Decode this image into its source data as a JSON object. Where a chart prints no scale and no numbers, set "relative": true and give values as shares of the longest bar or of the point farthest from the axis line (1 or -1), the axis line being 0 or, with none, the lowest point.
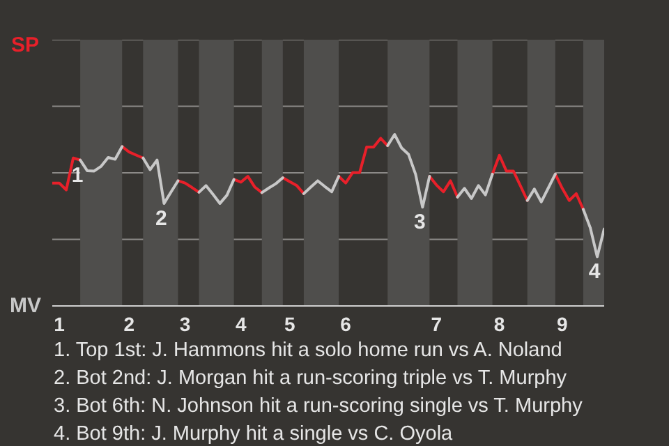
{
  "chart_data": {
    "type": "line",
    "relative": true,
    "categories": [
      null,
      "1",
      null,
      null,
      null,
      null,
      null,
      null,
      null,
      null,
      null,
      "2",
      null,
      null,
      null,
      null,
      null,
      null,
      null,
      "3",
      null,
      null,
      null,
      null,
      null,
      null,
      null,
      "4",
      null,
      null,
      null,
      null,
      null,
      null,
      "5",
      null,
      null,
      null,
      null,
      null,
      null,
      null,
      "6",
      null,
      null,
      null,
      null,
      null,
      null,
      null,
      null,
      null,
      null,
      null,
      null,
      "7",
      null,
      null,
      null,
      null,
      null,
      null,
      null,
      null,
      "8",
      null,
      null,
      null,
      null,
      null,
      null,
      null,
      null,
      "9",
      null,
      null,
      null,
      null,
      null,
      null
    ],
    "series": [
      {
        "color": "#e8202a",
        "values": [
          0.717,
          0.717,
          0.677,
          0.863,
          0.851,
          null,
          null,
          null,
          null,
          null,
          0.93,
          0.898,
          0.88,
          0.863,
          null,
          null,
          null,
          null,
          0.73,
          0.717,
          0.691,
          0.663,
          null,
          null,
          null,
          null,
          0.738,
          0.722,
          0.756,
          0.693,
          0.661,
          null,
          null,
          0.748,
          0.725,
          0.702,
          0.655,
          null,
          null,
          null,
          null,
          0.756,
          0.717,
          0.778,
          0.778,
          0.927,
          0.927,
          0.978,
          0.935,
          null,
          null,
          null,
          null,
          null,
          0.756,
          0.705,
          0.666,
          0.73,
          0.635,
          null,
          null,
          null,
          null,
          0.769,
          0.879,
          0.787,
          0.787,
          0.702,
          0.615,
          null,
          null,
          null,
          0.769,
          0.686,
          0.615,
          0.655,
          0.564,
          null,
          null,
          null
        ]
      },
      {
        "color": "#c8c8c8",
        "values": [
          null,
          null,
          null,
          null,
          0.851,
          0.789,
          0.787,
          0.815,
          0.866,
          0.856,
          0.93,
          null,
          null,
          0.863,
          0.795,
          0.851,
          0.598,
          0.665,
          0.73,
          null,
          null,
          0.663,
          0.702,
          0.651,
          0.598,
          0.646,
          0.738,
          null,
          null,
          null,
          0.661,
          0.688,
          0.713,
          0.748,
          null,
          null,
          0.655,
          0.693,
          0.73,
          0.697,
          0.666,
          0.756,
          null,
          null,
          null,
          null,
          null,
          null,
          0.935,
          1,
          0.922,
          0.884,
          0.769,
          0.576,
          0.756,
          null,
          null,
          null,
          0.635,
          0.686,
          0.627,
          0.702,
          0.648,
          0.769,
          null,
          null,
          null,
          null,
          0.615,
          0.682,
          0.607,
          0.688,
          0.769,
          null,
          null,
          null,
          0.564,
          0.457,
          0.287,
          0.449
        ]
      }
    ],
    "ref_lines": [
      {
        "axis": "y",
        "value": 0.388,
        "color": "#8c8a88"
      },
      {
        "axis": "y",
        "value": 0.776,
        "color": "#8c8a88"
      },
      {
        "axis": "y",
        "value": 1.165,
        "color": "#8c8a88"
      },
      {
        "axis": "y",
        "value": 1.553,
        "color": "#8c8a88"
      }
    ],
    "line_style": "solid",
    "annotations": [
      {
        "text": "1",
        "y": 0.851
      },
      {
        "text": "2",
        "y": 0.598
      },
      {
        "text": "3",
        "y": 0.576
      },
      {
        "text": "4",
        "y": 0.287
      },
      "SP",
      "MV",
      "1. Top 1st: J. Hammons hit a solo home run vs A. Noland",
      "2. Bot 2nd: J. Morgan hit a run-scoring triple vs T. Murphy",
      "3. Bot 6th: N. Johnson hit a run-scoring single vs T. Murphy",
      "4. Bot 9th: J. Murphy hit a single vs C. Oyola"
    ]
  }
}
